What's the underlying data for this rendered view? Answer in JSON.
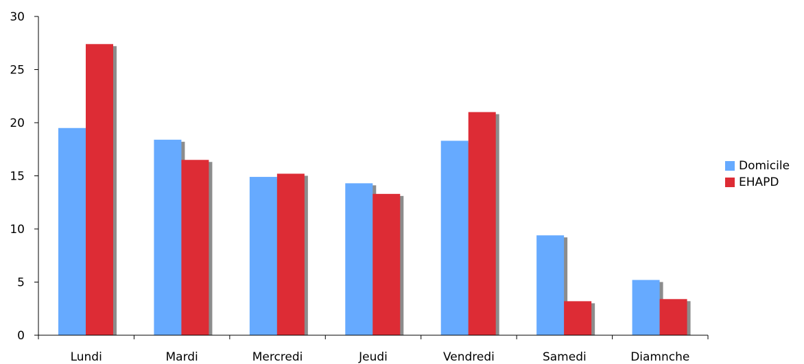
{
  "chart_data": {
    "type": "bar",
    "categories": [
      "Lundi",
      "Mardi",
      "Mercredi",
      "Jeudi",
      "Vendredi",
      "Samedi",
      "Diamnche"
    ],
    "series": [
      {
        "name": "Domicile",
        "values": [
          19.5,
          18.4,
          14.9,
          14.3,
          18.3,
          9.4,
          5.2
        ],
        "color": "#66aaff"
      },
      {
        "name": "EHAPD",
        "values": [
          27.4,
          16.5,
          15.2,
          13.3,
          21.0,
          3.2,
          3.4
        ],
        "color": "#dd2c35"
      }
    ],
    "yticks": [
      "0",
      "5",
      "10",
      "15",
      "20",
      "25",
      "30"
    ],
    "ylim": [
      0,
      30
    ],
    "title": "",
    "xlabel": "",
    "ylabel": "",
    "grid": false,
    "legend_position": "right",
    "shadow_color": "#8c8c8c"
  }
}
